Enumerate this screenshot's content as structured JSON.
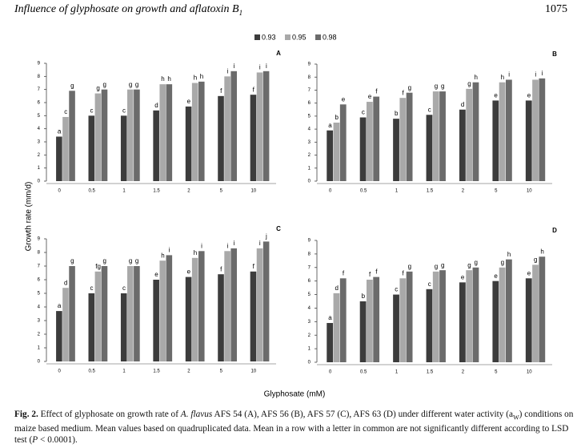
{
  "header": {
    "running_title": "Influence of glyphosate on growth and aflatoxin B",
    "running_title_sub": "1",
    "page": "1075"
  },
  "axes_labels": {
    "y": "Growth rate (mm/d)",
    "x": "Glyphosate (mM)"
  },
  "caption": [
    {
      "text": "Fig. 2.",
      "style": "bold"
    },
    {
      "text": " Effect of glyphosate on growth rate of ",
      "style": "normal"
    },
    {
      "text": "A. flavus",
      "style": "italic"
    },
    {
      "text": " AFS 54 (A), AFS 56 (B), AFS 57 (C), AFS 63 (D) under different water activity (a",
      "style": "normal"
    },
    {
      "text": "W",
      "style": "sub"
    },
    {
      "text": ") conditions on maize based medium. Mean values based on quadruplicated data. Mean in a row with a letter in common are not significantly different according to LSD test (",
      "style": "normal"
    },
    {
      "text": "P",
      "style": "italic"
    },
    {
      "text": " < 0.0001).",
      "style": "normal"
    }
  ],
  "chart_data": [
    {
      "type": "bar",
      "title": "A",
      "categories": [
        "0",
        "0.5",
        "1",
        "1.5",
        "2",
        "5",
        "10"
      ],
      "ylim": [
        0,
        9
      ],
      "yticks": [
        0,
        1,
        2,
        3,
        4,
        5,
        6,
        7,
        8,
        9
      ],
      "series": [
        {
          "name": "0.93",
          "color": "#3c3c3c",
          "values": [
            3.4,
            5.0,
            5.0,
            5.4,
            5.7,
            6.5,
            6.6
          ],
          "letters": [
            "a",
            "c",
            "c",
            "d",
            "e",
            "f",
            "f"
          ]
        },
        {
          "name": "0.95",
          "color": "#a9a9a9",
          "values": [
            4.9,
            6.7,
            7.0,
            7.4,
            7.5,
            8.0,
            8.3
          ],
          "letters": [
            "c",
            "g",
            "g",
            "h",
            "h",
            "i",
            "i"
          ]
        },
        {
          "name": "0.98",
          "color": "#6b6b6b",
          "values": [
            6.9,
            7.0,
            7.0,
            7.4,
            7.6,
            8.4,
            8.4
          ],
          "letters": [
            "g",
            "g",
            "g",
            "h",
            "h",
            "i",
            "i"
          ]
        }
      ]
    },
    {
      "type": "bar",
      "title": "B",
      "categories": [
        "0",
        "0.5",
        "1",
        "1.5",
        "2",
        "5",
        "10"
      ],
      "ylim": [
        0,
        9
      ],
      "yticks": [
        0,
        1,
        2,
        3,
        4,
        5,
        6,
        7,
        8,
        9
      ],
      "series": [
        {
          "values": [
            3.9,
            4.9,
            4.8,
            5.1,
            5.5,
            6.2,
            6.2
          ],
          "letters": [
            "a",
            "c",
            "b",
            "c",
            "d",
            "e",
            "e"
          ]
        },
        {
          "values": [
            4.5,
            6.1,
            6.4,
            6.9,
            7.1,
            7.6,
            7.8
          ],
          "letters": [
            "b",
            "e",
            "f",
            "g",
            "g",
            "h",
            "i"
          ]
        },
        {
          "values": [
            5.9,
            6.5,
            6.8,
            6.9,
            7.6,
            7.8,
            7.9
          ],
          "letters": [
            "e",
            "f",
            "g",
            "g",
            "h",
            "i",
            "i"
          ]
        }
      ]
    },
    {
      "type": "bar",
      "title": "C",
      "categories": [
        "0",
        "0.5",
        "1",
        "1.5",
        "2",
        "5",
        "10"
      ],
      "ylim": [
        0,
        9
      ],
      "yticks": [
        0,
        1,
        2,
        3,
        4,
        5,
        6,
        7,
        8,
        9
      ],
      "series": [
        {
          "values": [
            3.7,
            5.0,
            5.0,
            6.0,
            6.2,
            6.4,
            6.6
          ],
          "letters": [
            "a",
            "c",
            "c",
            "e",
            "e",
            "f",
            "f"
          ]
        },
        {
          "values": [
            5.4,
            6.6,
            7.0,
            7.4,
            7.6,
            8.1,
            8.3
          ],
          "letters": [
            "d",
            "fg",
            "g",
            "h",
            "h",
            "i",
            "i"
          ]
        },
        {
          "values": [
            7.0,
            7.0,
            7.0,
            7.8,
            8.1,
            8.3,
            8.8
          ],
          "letters": [
            "g",
            "g",
            "g",
            "i",
            "i",
            "i",
            "j"
          ]
        }
      ]
    },
    {
      "type": "bar",
      "title": "D",
      "categories": [
        "0",
        "0.5",
        "1",
        "1.5",
        "2",
        "5",
        "10"
      ],
      "ylim": [
        0,
        9
      ],
      "yticks": [
        0,
        1,
        2,
        3,
        4,
        5,
        6,
        7,
        8,
        9
      ],
      "series": [
        {
          "values": [
            2.9,
            4.5,
            5.0,
            5.4,
            5.9,
            6.0,
            6.2
          ],
          "letters": [
            "a",
            "b",
            "c",
            "c",
            "e",
            "e",
            "e"
          ]
        },
        {
          "values": [
            5.1,
            6.1,
            6.2,
            6.7,
            6.8,
            7.0,
            7.2
          ],
          "letters": [
            "d",
            "f",
            "f",
            "g",
            "g",
            "g",
            "g"
          ]
        },
        {
          "values": [
            6.2,
            6.3,
            6.7,
            6.8,
            7.0,
            7.6,
            7.8
          ],
          "letters": [
            "f",
            "f",
            "g",
            "g",
            "g",
            "h",
            "h"
          ]
        }
      ]
    }
  ]
}
